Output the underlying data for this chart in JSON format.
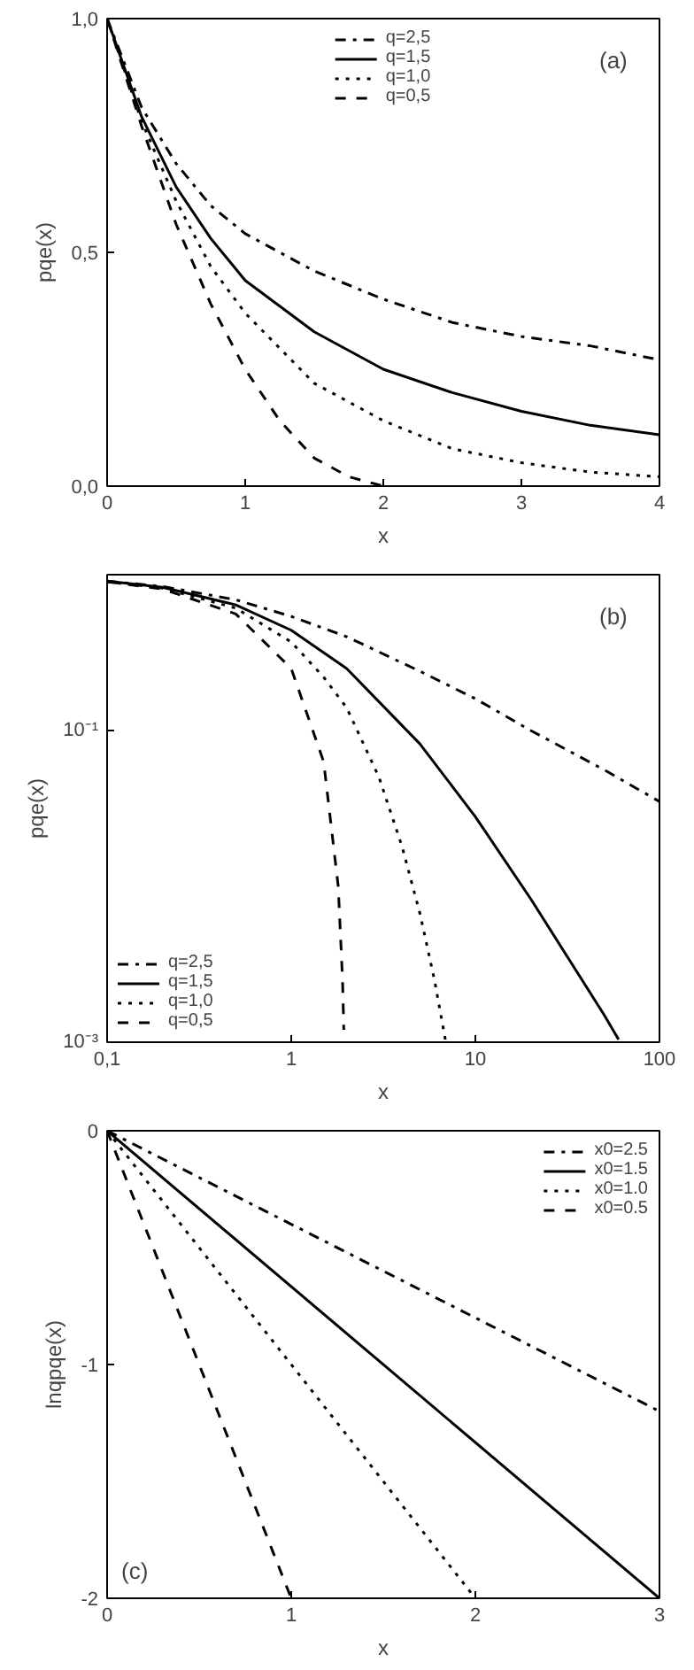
{
  "chart_data": [
    {
      "type": "line",
      "xlabel": "x",
      "ylabel": "pqe(x)",
      "annotations": [
        "(a)"
      ],
      "grid": false,
      "legend": "top",
      "marker": "none",
      "xlim": [
        0,
        4
      ],
      "ylim": [
        0,
        1
      ],
      "xticks": [
        0,
        1,
        2,
        3,
        4
      ],
      "yticks": [
        {
          "value": 0,
          "label": "0,0"
        },
        {
          "value": 0.5,
          "label": "0,5"
        },
        {
          "value": 1,
          "label": "1,0"
        }
      ],
      "series": [
        {
          "name": "q=2,5",
          "color": "#000000",
          "line_style": "dashdot",
          "x": [
            0,
            0.25,
            0.5,
            0.75,
            1,
            1.5,
            2,
            2.5,
            3,
            3.5,
            4
          ],
          "values": [
            1,
            0.81,
            0.69,
            0.6,
            0.54,
            0.46,
            0.4,
            0.35,
            0.32,
            0.3,
            0.27
          ]
        },
        {
          "name": "q=1,5",
          "color": "#000000",
          "line_style": "solid",
          "x": [
            0,
            0.25,
            0.5,
            0.75,
            1,
            1.5,
            2,
            2.5,
            3,
            3.5,
            4
          ],
          "values": [
            1,
            0.79,
            0.64,
            0.53,
            0.44,
            0.33,
            0.25,
            0.2,
            0.16,
            0.13,
            0.11
          ]
        },
        {
          "name": "q=1,0",
          "color": "#000000",
          "line_style": "dotted",
          "x": [
            0,
            0.25,
            0.5,
            0.75,
            1,
            1.5,
            2,
            2.5,
            3,
            3.5,
            4
          ],
          "values": [
            1,
            0.78,
            0.61,
            0.47,
            0.37,
            0.22,
            0.14,
            0.08,
            0.05,
            0.03,
            0.02
          ]
        },
        {
          "name": "q=0,5",
          "color": "#000000",
          "line_style": "dashed",
          "x": [
            0,
            0.25,
            0.5,
            0.75,
            1,
            1.25,
            1.5,
            1.75,
            2
          ],
          "values": [
            1,
            0.77,
            0.56,
            0.39,
            0.25,
            0.14,
            0.06,
            0.02,
            0
          ]
        }
      ]
    },
    {
      "type": "line",
      "xlabel": "x",
      "ylabel": "pqe(x)",
      "annotations": [
        "(b)"
      ],
      "grid": false,
      "legend": "bottom left",
      "marker": "none",
      "log": "xy",
      "xlim": [
        0.1,
        100
      ],
      "ylim": [
        0.001,
        1
      ],
      "xticks": [
        {
          "value": 0.1,
          "label": "0,1"
        },
        1,
        10,
        100
      ],
      "yticks": [
        {
          "value": 0.1,
          "label": "10⁻¹"
        },
        {
          "value": 0.001,
          "label": "10⁻³"
        }
      ],
      "series": [
        {
          "name": "q=2,5",
          "color": "#000000",
          "line_style": "dashdot",
          "x": [
            0.1,
            0.2,
            0.5,
            1,
            2,
            5,
            10,
            20,
            50,
            100
          ],
          "values": [
            0.91,
            0.84,
            0.69,
            0.54,
            0.4,
            0.24,
            0.16,
            0.1,
            0.056,
            0.035
          ]
        },
        {
          "name": "q=1,5",
          "color": "#000000",
          "line_style": "solid",
          "x": [
            0.1,
            0.2,
            0.5,
            1,
            2,
            5,
            10,
            20,
            50,
            60
          ],
          "values": [
            0.91,
            0.83,
            0.64,
            0.44,
            0.25,
            0.082,
            0.028,
            0.0083,
            0.0015,
            0.00104
          ]
        },
        {
          "name": "q=1,0",
          "color": "#000000",
          "line_style": "dotted",
          "x": [
            0.1,
            0.2,
            0.5,
            1,
            1.5,
            2,
            3,
            4,
            5,
            6,
            6.9
          ],
          "values": [
            0.9,
            0.82,
            0.61,
            0.37,
            0.22,
            0.14,
            0.05,
            0.018,
            0.0067,
            0.0025,
            0.00101
          ]
        },
        {
          "name": "q=0,5",
          "color": "#000000",
          "line_style": "dashed",
          "x": [
            0.1,
            0.2,
            0.5,
            1,
            1.5,
            1.8,
            1.9,
            1.93
          ],
          "values": [
            0.9,
            0.81,
            0.56,
            0.25,
            0.063,
            0.01,
            0.0025,
            0.0012
          ]
        }
      ]
    },
    {
      "type": "line",
      "xlabel": "x",
      "ylabel": "lnqpqe(x)",
      "annotations": [
        "(c)"
      ],
      "grid": false,
      "legend": "top right",
      "marker": "none",
      "xlim": [
        0,
        3
      ],
      "ylim": [
        -2,
        0
      ],
      "xticks": [
        0,
        1,
        2,
        3
      ],
      "yticks": [
        -2,
        -1,
        0
      ],
      "series": [
        {
          "name": "x0=2.5",
          "color": "#000000",
          "line_style": "dashdot",
          "x": [
            0,
            3
          ],
          "values": [
            0,
            -1.2
          ]
        },
        {
          "name": "x0=1.5",
          "color": "#000000",
          "line_style": "solid",
          "x": [
            0,
            3
          ],
          "values": [
            0,
            -2
          ]
        },
        {
          "name": "x0=1.0",
          "color": "#000000",
          "line_style": "dotted",
          "x": [
            0,
            2
          ],
          "values": [
            0,
            -2
          ]
        },
        {
          "name": "x0=0.5",
          "color": "#000000",
          "line_style": "dashed",
          "x": [
            0,
            1
          ],
          "values": [
            0,
            -2
          ]
        }
      ]
    }
  ]
}
